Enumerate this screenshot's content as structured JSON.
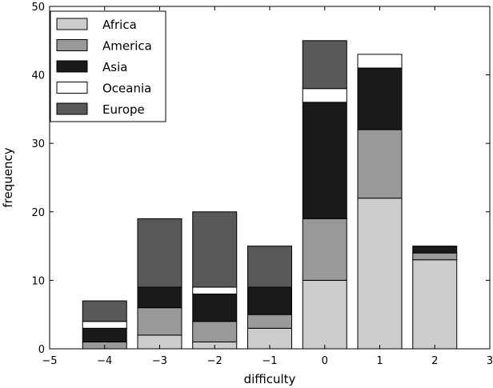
{
  "chart_data": {
    "type": "bar",
    "stacked": true,
    "title": "",
    "xlabel": "difficulty",
    "ylabel": "frequency",
    "xlim": [
      -5,
      3
    ],
    "ylim": [
      0,
      50
    ],
    "x_ticks": [
      -5,
      -4,
      -3,
      -2,
      -1,
      0,
      1,
      2,
      3
    ],
    "x_tick_labels": [
      "−5",
      "−4",
      "−3",
      "−2",
      "−1",
      "0",
      "1",
      "2",
      "3"
    ],
    "y_ticks": [
      0,
      10,
      20,
      30,
      40,
      50
    ],
    "y_tick_labels": [
      "0",
      "10",
      "20",
      "30",
      "40",
      "50"
    ],
    "bar_width": 0.8,
    "x": [
      -4,
      -3,
      -2,
      -1,
      0,
      1,
      2
    ],
    "series": [
      {
        "name": "Africa",
        "color": "#cccccc",
        "values": [
          0,
          2,
          1,
          3,
          10,
          22,
          13
        ]
      },
      {
        "name": "America",
        "color": "#999999",
        "values": [
          1,
          4,
          3,
          2,
          9,
          10,
          1
        ]
      },
      {
        "name": "Asia",
        "color": "#1a1a1a",
        "values": [
          2,
          3,
          4,
          4,
          17,
          9,
          1
        ]
      },
      {
        "name": "Oceania",
        "color": "#ffffff",
        "values": [
          1,
          0,
          1,
          0,
          2,
          2,
          0
        ]
      },
      {
        "name": "Europe",
        "color": "#595959",
        "values": [
          3,
          10,
          11,
          6,
          7,
          0,
          0
        ]
      }
    ],
    "legend_position": "top-left",
    "grid": false
  }
}
